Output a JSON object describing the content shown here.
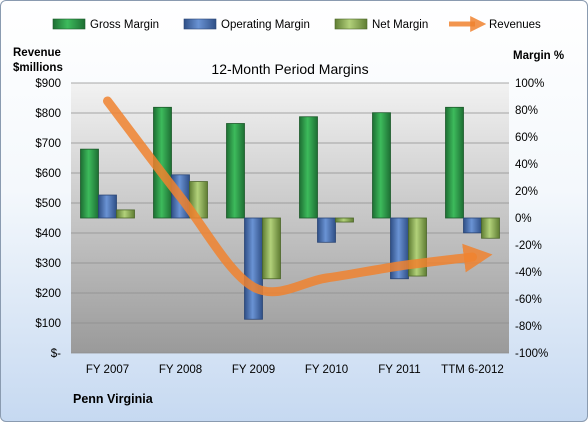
{
  "chart_data": {
    "type": "bar",
    "title": "12-Month Period Margins",
    "company": "Penn Virginia",
    "categories": [
      "FY 2007",
      "FY 2008",
      "FY 2009",
      "FY 2010",
      "FY 2011",
      "TTM 6-2012"
    ],
    "left_axis": {
      "title_line1": "Revenue",
      "title_line2": "$millions",
      "range": [
        0,
        900
      ],
      "ticks": [
        "$-",
        "$100",
        "$200",
        "$300",
        "$400",
        "$500",
        "$600",
        "$700",
        "$800",
        "$900"
      ]
    },
    "right_axis": {
      "title": "Margin %",
      "range": [
        -100,
        100
      ],
      "ticks": [
        "-100%",
        "-80%",
        "-60%",
        "-40%",
        "-20%",
        "0%",
        "20%",
        "40%",
        "60%",
        "80%",
        "100%"
      ]
    },
    "series": [
      {
        "name": "Gross Margin",
        "axis": "right",
        "type": "bar",
        "color": "#2a9a48",
        "values": [
          51,
          82,
          70,
          75,
          78,
          82
        ]
      },
      {
        "name": "Operating Margin",
        "axis": "right",
        "type": "bar",
        "color": "#4a73b5",
        "values": [
          17,
          32,
          -75,
          -18,
          -45,
          -11
        ]
      },
      {
        "name": "Net Margin",
        "axis": "right",
        "type": "bar",
        "color": "#8fb356",
        "values": [
          6,
          27,
          -45,
          -3,
          -43,
          -15
        ]
      },
      {
        "name": "Revenues",
        "axis": "left",
        "type": "line",
        "color": "#f0822f",
        "values": [
          840,
          520,
          220,
          250,
          290,
          320
        ]
      }
    ],
    "grid": true,
    "legend_position": "top"
  }
}
